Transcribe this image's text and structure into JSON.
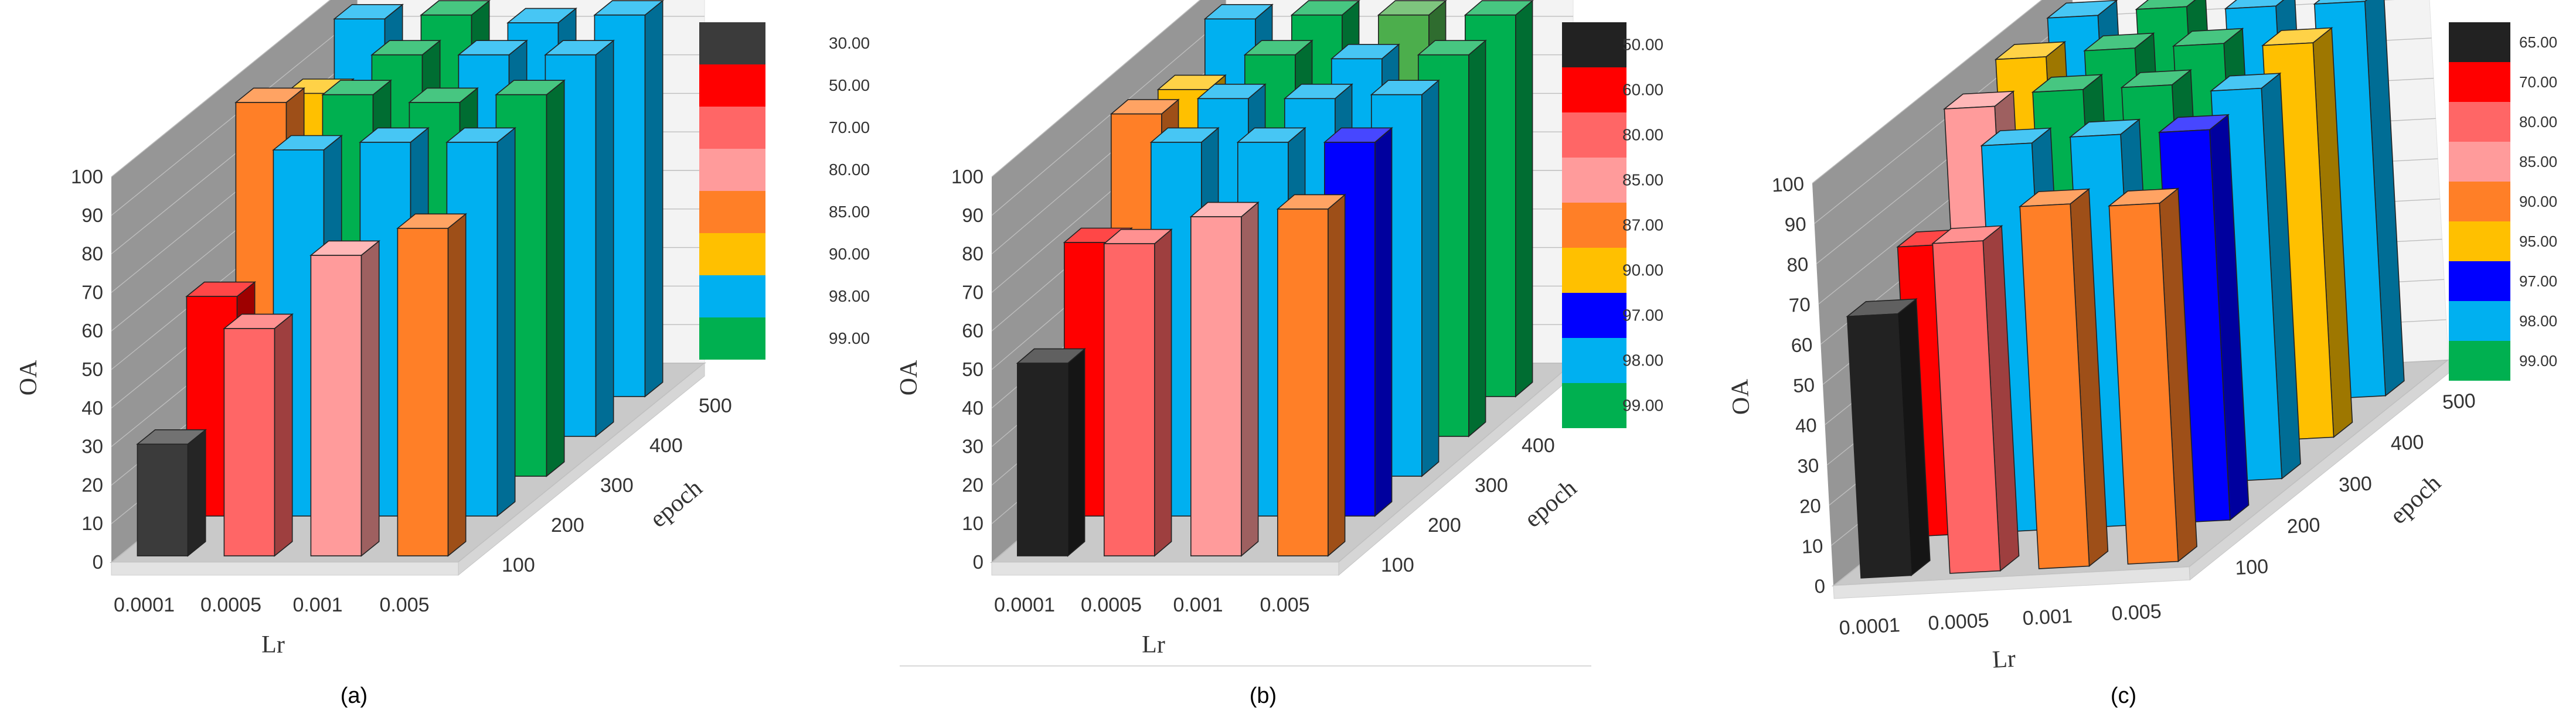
{
  "figure": {
    "separator": true
  },
  "chart_data": [
    {
      "type": "bar3d",
      "caption": "(a)",
      "ylabel": "OA",
      "xlabel": "Lr",
      "zlabel": "epoch",
      "ylim": [
        0,
        100
      ],
      "yticks": [
        "0",
        "10",
        "20",
        "30",
        "40",
        "50",
        "60",
        "70",
        "80",
        "90",
        "100"
      ],
      "x_categories": [
        "0.0001",
        "0.0005",
        "0.001",
        "0.005"
      ],
      "z_categories": [
        "100",
        "200",
        "300",
        "400",
        "500"
      ],
      "legend": [
        {
          "label": "30.00",
          "color": "#3b3b3b"
        },
        {
          "label": "50.00",
          "color": "#ff0000"
        },
        {
          "label": "70.00",
          "color": "#ff6666"
        },
        {
          "label": "80.00",
          "color": "#ff9b9b"
        },
        {
          "label": "85.00",
          "color": "#ff7f27"
        },
        {
          "label": "90.00",
          "color": "#ffc000"
        },
        {
          "label": "98.00",
          "color": "#00b0f0"
        },
        {
          "label": "99.00",
          "color": "#00b050"
        }
      ],
      "values": [
        [
          29,
          59,
          78,
          85
        ],
        [
          57,
          95,
          97,
          97
        ],
        [
          97,
          99,
          97,
          99
        ],
        [
          89,
          99,
          99,
          99
        ],
        [
          98,
          99,
          97,
          99
        ]
      ],
      "colors": [
        [
          "#3b3b3b",
          "#ff6666",
          "#ff9b9b",
          "#ff7f27"
        ],
        [
          "#ff0000",
          "#00b0f0",
          "#00b0f0",
          "#00b0f0"
        ],
        [
          "#ff7f27",
          "#00b050",
          "#00b050",
          "#00b050"
        ],
        [
          "#ffc000",
          "#00b050",
          "#00b0f0",
          "#00b0f0"
        ],
        [
          "#00b0f0",
          "#00b050",
          "#00b0f0",
          "#00b0f0"
        ]
      ]
    },
    {
      "type": "bar3d",
      "caption": "(b)",
      "ylabel": "OA",
      "xlabel": "Lr",
      "zlabel": "epoch",
      "ylim": [
        0,
        100
      ],
      "yticks": [
        "0",
        "10",
        "20",
        "30",
        "40",
        "50",
        "60",
        "70",
        "80",
        "90",
        "100"
      ],
      "x_categories": [
        "0.0001",
        "0.0005",
        "0.001",
        "0.005"
      ],
      "z_categories": [
        "100",
        "200",
        "300",
        "400",
        "500"
      ],
      "legend": [
        {
          "label": "50.00",
          "color": "#222222"
        },
        {
          "label": "60.00",
          "color": "#ff0000"
        },
        {
          "label": "80.00",
          "color": "#ff6666"
        },
        {
          "label": "85.00",
          "color": "#ff9b9b"
        },
        {
          "label": "87.00",
          "color": "#ff7f27"
        },
        {
          "label": "90.00",
          "color": "#ffc000"
        },
        {
          "label": "97.00",
          "color": "#0000ff"
        },
        {
          "label": "98.00",
          "color": "#00b0f0"
        },
        {
          "label": "99.00",
          "color": "#00b050"
        }
      ],
      "values": [
        [
          50,
          81,
          88,
          90
        ],
        [
          71,
          97,
          97,
          97
        ],
        [
          94,
          98,
          98,
          99
        ],
        [
          90,
          99,
          98,
          99
        ],
        [
          98,
          99,
          99,
          99
        ]
      ],
      "colors": [
        [
          "#222222",
          "#ff6666",
          "#ff9b9b",
          "#ff7f27"
        ],
        [
          "#ff0000",
          "#00b0f0",
          "#00b0f0",
          "#0000ff"
        ],
        [
          "#ff7f27",
          "#00b0f0",
          "#00b0f0",
          "#00b0f0"
        ],
        [
          "#ffc000",
          "#00b050",
          "#00b0f0",
          "#00b050"
        ],
        [
          "#00b0f0",
          "#00b050",
          "#4cae4c",
          "#00b050"
        ]
      ]
    },
    {
      "type": "bar3d",
      "caption": "(c)",
      "ylabel": "OA",
      "xlabel": "Lr",
      "zlabel": "epoch",
      "ylim": [
        0,
        100
      ],
      "yticks": [
        "0",
        "10",
        "20",
        "30",
        "40",
        "50",
        "60",
        "70",
        "80",
        "90",
        "100"
      ],
      "x_categories": [
        "0.0001",
        "0.0005",
        "0.001",
        "0.005"
      ],
      "z_categories": [
        "100",
        "200",
        "300",
        "400",
        "500"
      ],
      "legend": [
        {
          "label": "65.00",
          "color": "#222222"
        },
        {
          "label": "70.00",
          "color": "#ff0000"
        },
        {
          "label": "80.00",
          "color": "#ff6666"
        },
        {
          "label": "85.00",
          "color": "#ff9b9b"
        },
        {
          "label": "90.00",
          "color": "#ff7f27"
        },
        {
          "label": "95.00",
          "color": "#ffc000"
        },
        {
          "label": "97.00",
          "color": "#0000ff"
        },
        {
          "label": "98.00",
          "color": "#00b0f0"
        },
        {
          "label": "99.00",
          "color": "#00b050"
        }
      ],
      "values": [
        [
          65,
          82,
          90,
          89
        ],
        [
          72,
          96,
          97,
          97
        ],
        [
          96,
          99,
          99,
          97
        ],
        [
          98,
          99,
          99,
          98
        ],
        [
          98,
          99,
          98,
          98
        ]
      ],
      "colors": [
        [
          "#222222",
          "#ff6666",
          "#ff7f27",
          "#ff7f27"
        ],
        [
          "#ff0000",
          "#00b0f0",
          "#00b0f0",
          "#0000ff"
        ],
        [
          "#ff9b9b",
          "#00b050",
          "#00b050",
          "#00b0f0"
        ],
        [
          "#ffc000",
          "#00b050",
          "#00b050",
          "#ffc000"
        ],
        [
          "#00b0f0",
          "#00b050",
          "#00b0f0",
          "#00b0f0"
        ]
      ]
    }
  ]
}
